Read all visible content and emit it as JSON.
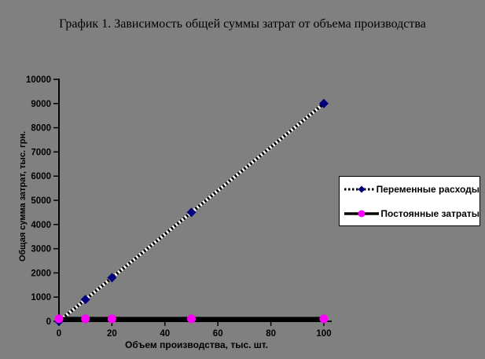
{
  "page": {
    "background_color": "#808080"
  },
  "chart_data": {
    "type": "line",
    "title": "График 1. Зависимость общей суммы затрат от объема производства",
    "xlabel": "Объем производства, тыс. шт.",
    "ylabel": "Общая сумма затрат, тыс. грн.",
    "x": [
      0,
      10,
      20,
      50,
      100
    ],
    "series": [
      {
        "name": "Переменные расходы",
        "values": [
          0,
          900,
          1800,
          4500,
          9000
        ],
        "line_style": "dotted-black-white",
        "line_color": "#000000",
        "marker": "diamond",
        "marker_color": "#000080"
      },
      {
        "name": "Постоянные затраты",
        "values": [
          100,
          100,
          100,
          100,
          100
        ],
        "line_style": "solid",
        "line_color": "#000000",
        "marker": "circle",
        "marker_color": "#FF00FF"
      }
    ],
    "xlim": [
      0,
      100
    ],
    "ylim": [
      0,
      10000
    ],
    "x_ticks": [
      0,
      20,
      40,
      60,
      80,
      100
    ],
    "y_ticks": [
      0,
      1000,
      2000,
      3000,
      4000,
      5000,
      6000,
      7000,
      8000,
      9000,
      10000
    ],
    "grid": false,
    "legend_position": "right",
    "legend_background": "#FFFFFF",
    "axis_color": "#000000",
    "background_color": "#808080"
  }
}
